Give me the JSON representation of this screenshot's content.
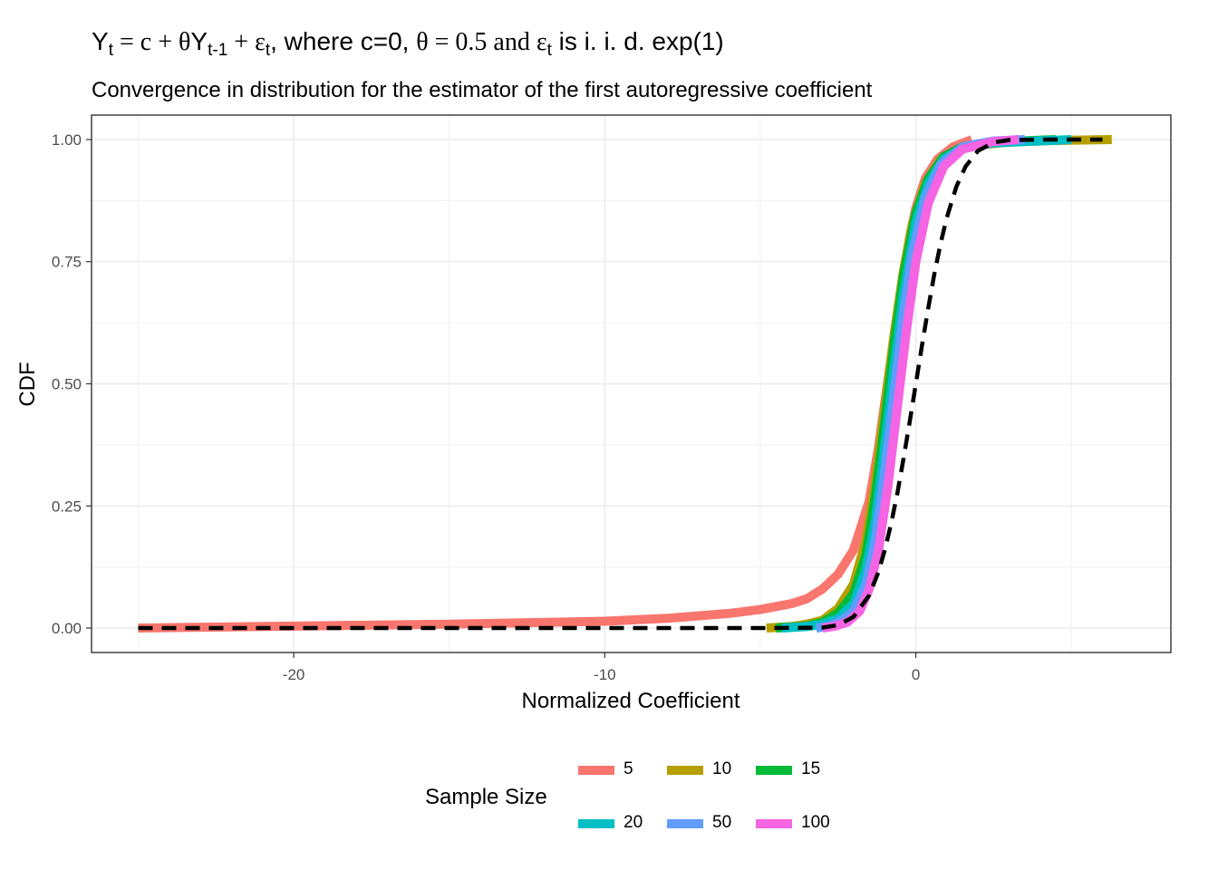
{
  "title": {
    "prefix_Y": "Y",
    "sub_t": "t",
    "eq1": " = c + ",
    "theta": "θ",
    "Y2": "Y",
    "sub_t1": "t-1",
    "plus": " + ",
    "eps": "ε",
    "sub_t2": "t",
    "text_where": ", where c=0, ",
    "theta2": "θ",
    "eq2": " = 0.5 and ",
    "eps2": "ε",
    "sub_t3": "t",
    "tail": " is i. i. d. exp(1)"
  },
  "subtitle": "Convergence in distribution for the estimator of the first autoregressive coefficient",
  "chart_data": {
    "type": "line",
    "xlabel": "Normalized Coefficient",
    "ylabel": "CDF",
    "xlim": [
      -26.5,
      8.2
    ],
    "ylim": [
      -0.05,
      1.05
    ],
    "x_ticks": [
      {
        "value": -20,
        "label": "-20"
      },
      {
        "value": -10,
        "label": "-10"
      },
      {
        "value": 0,
        "label": "0"
      }
    ],
    "y_ticks": [
      {
        "value": 0,
        "label": "0.00"
      },
      {
        "value": 0.25,
        "label": "0.25"
      },
      {
        "value": 0.5,
        "label": "0.50"
      },
      {
        "value": 0.75,
        "label": "0.75"
      },
      {
        "value": 1,
        "label": "1.00"
      }
    ],
    "grid": true,
    "legend_title": "Sample Size",
    "legend_position": "bottom",
    "series": [
      {
        "name": "5",
        "color": "#F8766D",
        "points": [
          [
            -25,
            0
          ],
          [
            -20,
            0.004
          ],
          [
            -15,
            0.008
          ],
          [
            -10,
            0.014
          ],
          [
            -8,
            0.02
          ],
          [
            -6,
            0.03
          ],
          [
            -5,
            0.038
          ],
          [
            -4,
            0.05
          ],
          [
            -3.5,
            0.06
          ],
          [
            -3,
            0.08
          ],
          [
            -2.5,
            0.11
          ],
          [
            -2,
            0.16
          ],
          [
            -1.5,
            0.26
          ],
          [
            -1.2,
            0.37
          ],
          [
            -1,
            0.46
          ],
          [
            -0.8,
            0.55
          ],
          [
            -0.5,
            0.68
          ],
          [
            -0.2,
            0.8
          ],
          [
            0,
            0.86
          ],
          [
            0.3,
            0.92
          ],
          [
            0.7,
            0.96
          ],
          [
            1.2,
            0.985
          ],
          [
            1.8,
            1.0
          ]
        ]
      },
      {
        "name": "10",
        "color": "#B79F00",
        "points": [
          [
            -4.8,
            0
          ],
          [
            -4,
            0.003
          ],
          [
            -3.5,
            0.008
          ],
          [
            -3,
            0.016
          ],
          [
            -2.5,
            0.04
          ],
          [
            -2,
            0.09
          ],
          [
            -1.6,
            0.18
          ],
          [
            -1.3,
            0.3
          ],
          [
            -1,
            0.45
          ],
          [
            -0.7,
            0.6
          ],
          [
            -0.4,
            0.73
          ],
          [
            -0.1,
            0.83
          ],
          [
            0.3,
            0.91
          ],
          [
            0.8,
            0.96
          ],
          [
            1.5,
            0.985
          ],
          [
            3,
            0.995
          ],
          [
            4.5,
            0.998
          ],
          [
            6.3,
            1.0
          ]
        ]
      },
      {
        "name": "15",
        "color": "#00BA38",
        "points": [
          [
            -4.5,
            0
          ],
          [
            -3.5,
            0.004
          ],
          [
            -3,
            0.012
          ],
          [
            -2.5,
            0.03
          ],
          [
            -2,
            0.07
          ],
          [
            -1.6,
            0.15
          ],
          [
            -1.3,
            0.27
          ],
          [
            -1,
            0.42
          ],
          [
            -0.7,
            0.58
          ],
          [
            -0.4,
            0.72
          ],
          [
            0,
            0.85
          ],
          [
            0.4,
            0.92
          ],
          [
            0.9,
            0.965
          ],
          [
            1.5,
            0.985
          ],
          [
            2.5,
            0.995
          ],
          [
            4.5,
            1.0
          ]
        ]
      },
      {
        "name": "20",
        "color": "#00BFC4",
        "points": [
          [
            -4.3,
            0
          ],
          [
            -3.5,
            0.003
          ],
          [
            -3,
            0.008
          ],
          [
            -2.5,
            0.02
          ],
          [
            -2,
            0.05
          ],
          [
            -1.6,
            0.12
          ],
          [
            -1.3,
            0.22
          ],
          [
            -1,
            0.37
          ],
          [
            -0.7,
            0.53
          ],
          [
            -0.4,
            0.68
          ],
          [
            0,
            0.83
          ],
          [
            0.4,
            0.91
          ],
          [
            0.9,
            0.96
          ],
          [
            1.6,
            0.985
          ],
          [
            2.5,
            0.993
          ],
          [
            5,
            1.0
          ]
        ]
      },
      {
        "name": "50",
        "color": "#619CFF",
        "points": [
          [
            -3.2,
            0
          ],
          [
            -2.8,
            0.004
          ],
          [
            -2.4,
            0.015
          ],
          [
            -2,
            0.035
          ],
          [
            -1.6,
            0.09
          ],
          [
            -1.3,
            0.18
          ],
          [
            -1,
            0.32
          ],
          [
            -0.7,
            0.48
          ],
          [
            -0.4,
            0.64
          ],
          [
            -0.1,
            0.77
          ],
          [
            0.3,
            0.88
          ],
          [
            0.8,
            0.95
          ],
          [
            1.5,
            0.985
          ],
          [
            2.5,
            0.997
          ],
          [
            3.5,
            1.0
          ]
        ]
      },
      {
        "name": "100",
        "color": "#F564E3",
        "points": [
          [
            -3,
            0
          ],
          [
            -2.6,
            0.004
          ],
          [
            -2.2,
            0.012
          ],
          [
            -1.8,
            0.035
          ],
          [
            -1.5,
            0.08
          ],
          [
            -1.2,
            0.16
          ],
          [
            -0.9,
            0.29
          ],
          [
            -0.6,
            0.45
          ],
          [
            -0.3,
            0.61
          ],
          [
            0,
            0.75
          ],
          [
            0.4,
            0.87
          ],
          [
            0.9,
            0.945
          ],
          [
            1.5,
            0.98
          ],
          [
            2.5,
            0.996
          ],
          [
            3.3,
            1.0
          ]
        ]
      },
      {
        "name": "",
        "color": "#000000",
        "dashed": true,
        "points": [
          [
            -25,
            0
          ],
          [
            -5,
            0
          ],
          [
            -3,
            0.001
          ],
          [
            -2.5,
            0.006
          ],
          [
            -2,
            0.023
          ],
          [
            -1.5,
            0.067
          ],
          [
            -1.2,
            0.115
          ],
          [
            -1,
            0.159
          ],
          [
            -0.8,
            0.212
          ],
          [
            -0.6,
            0.274
          ],
          [
            -0.4,
            0.345
          ],
          [
            -0.2,
            0.421
          ],
          [
            0,
            0.5
          ],
          [
            0.2,
            0.579
          ],
          [
            0.4,
            0.655
          ],
          [
            0.6,
            0.726
          ],
          [
            0.8,
            0.788
          ],
          [
            1,
            0.841
          ],
          [
            1.3,
            0.903
          ],
          [
            1.6,
            0.945
          ],
          [
            2,
            0.977
          ],
          [
            2.5,
            0.994
          ],
          [
            3,
            0.999
          ],
          [
            4,
            1.0
          ],
          [
            6,
            1.0
          ]
        ]
      }
    ]
  }
}
